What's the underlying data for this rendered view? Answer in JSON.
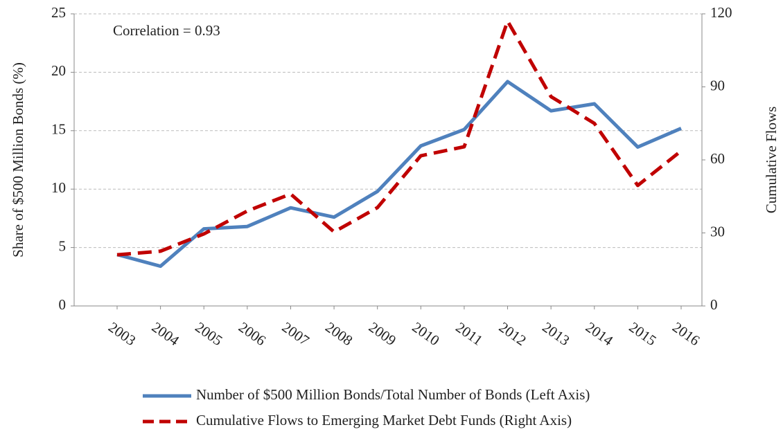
{
  "chart_data": {
    "type": "line",
    "annotation": "Correlation = 0.93",
    "y_label": "Share of $500 Million Bonds (%)",
    "y2_label": "Cumulative Flows",
    "categories": [
      "2003",
      "2004",
      "2005",
      "2006",
      "2007",
      "2008",
      "2009",
      "2010",
      "2011",
      "2012",
      "2013",
      "2014",
      "2015",
      "2016"
    ],
    "series": [
      {
        "name": "Number of $500 Million Bonds/Total Number of Bonds (Left Axis)",
        "color": "#4f81bd",
        "dash": false,
        "values": [
          4.4,
          3.4,
          6.6,
          6.8,
          8.4,
          7.6,
          9.8,
          13.7,
          15.1,
          19.2,
          16.7,
          17.3,
          13.6,
          15.2
        ]
      },
      {
        "name": "Cumulative Flows to Emerging Market Debt Funds (Right Axis)",
        "color": "#c00000",
        "dash": true,
        "axis": "y2",
        "values": [
          21,
          22.5,
          29.6,
          39,
          46,
          30.4,
          40.4,
          61.7,
          65.4,
          117,
          86,
          75,
          49.5,
          63.7
        ]
      }
    ],
    "ylim": [
      0,
      25
    ],
    "yticks": [
      0,
      5,
      10,
      15,
      20,
      25
    ],
    "y2lim": [
      0,
      120
    ],
    "y2ticks": [
      0,
      30,
      60,
      90,
      120
    ],
    "grid": true
  }
}
